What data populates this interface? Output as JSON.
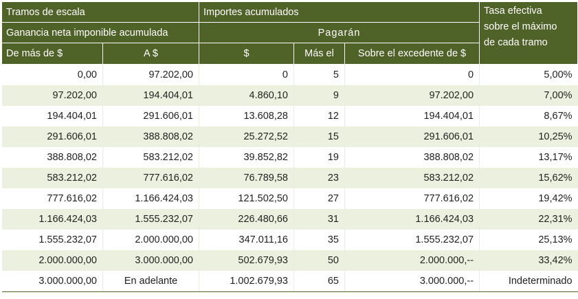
{
  "header": {
    "tramos": "Tramos de escala",
    "importes": "Importes acumulados",
    "tasa_line1": "Tasa efectiva",
    "tasa_line2": "sobre el máximo",
    "tasa_line3": "de cada tramo",
    "ganancia": "Ganancia neta imponible acumulada",
    "pagaran": "Pagarán",
    "col_de_mas": "De más de $",
    "col_a": "A $",
    "col_pesos": "$",
    "col_mas_el": "Más el",
    "col_excedente": "Sobre el excedente de $"
  },
  "rows": [
    {
      "de": "0,00",
      "a": "97.202,00",
      "pesos": "0",
      "mas_el": "5",
      "excedente": "0",
      "tasa": "5,00%"
    },
    {
      "de": "97.202,00",
      "a": "194.404,01",
      "pesos": "4.860,10",
      "mas_el": "9",
      "excedente": "97.202,00",
      "tasa": "7,00%"
    },
    {
      "de": "194.404,01",
      "a": "291.606,01",
      "pesos": "13.608,28",
      "mas_el": "12",
      "excedente": "194.404,01",
      "tasa": "8,67%"
    },
    {
      "de": "291.606,01",
      "a": "388.808,02",
      "pesos": "25.272,52",
      "mas_el": "15",
      "excedente": "291.606,01",
      "tasa": "10,25%"
    },
    {
      "de": "388.808,02",
      "a": "583.212,02",
      "pesos": "39.852,82",
      "mas_el": "19",
      "excedente": "388.808,02",
      "tasa": "13,17%"
    },
    {
      "de": "583.212,02",
      "a": "777.616,02",
      "pesos": "76.789,58",
      "mas_el": "23",
      "excedente": "583.212,02",
      "tasa": "15,62%"
    },
    {
      "de": "777.616,02",
      "a": "1.166.424,03",
      "pesos": "121.502,50",
      "mas_el": "27",
      "excedente": "777.616,02",
      "tasa": "19,42%"
    },
    {
      "de": "1.166.424,03",
      "a": "1.555.232,07",
      "pesos": "226.480,66",
      "mas_el": "31",
      "excedente": "1.166.424,03",
      "tasa": "22,31%"
    },
    {
      "de": "1.555.232,07",
      "a": "2.000.000,00",
      "pesos": "347.011,16",
      "mas_el": "35",
      "excedente": "1.555.232,07",
      "tasa": "25,13%"
    },
    {
      "de": "2.000.000,00",
      "a": "3.000.000,00",
      "pesos": "502.679,93",
      "mas_el": "50",
      "excedente": "2.000.000,--",
      "tasa": "33,42%"
    },
    {
      "de": "3.000.000,00",
      "a": "En adelante",
      "pesos": "1.002.679,93",
      "mas_el": "65",
      "excedente": "3.000.000,--",
      "tasa": "Indeterminado"
    }
  ],
  "colors": {
    "header_bg": "#4f6228",
    "header_text": "#ffffff",
    "row_alt": "#ebf1de",
    "row_base": "#ffffff"
  }
}
